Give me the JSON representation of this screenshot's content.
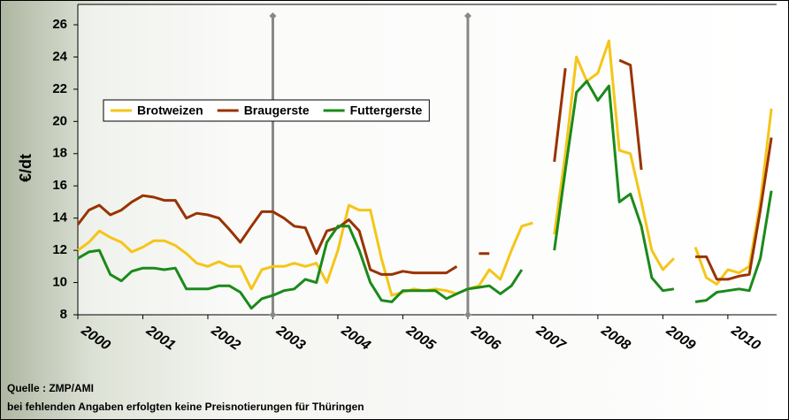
{
  "chart_data": {
    "type": "line",
    "ylabel": "€/dt",
    "notes": [
      "Quelle : ZMP/AMI",
      "bei fehlenden Angaben erfolgten keine Preisnotierungen für Thüringen"
    ],
    "xlim": [
      2000,
      2010.75
    ],
    "xticks": [
      2000,
      2001,
      2002,
      2003,
      2004,
      2005,
      2006,
      2007,
      2008,
      2009,
      2010
    ],
    "ylim": [
      8,
      26
    ],
    "yticks": [
      8,
      10,
      12,
      14,
      16,
      18,
      20,
      22,
      24,
      26
    ],
    "vlines": [
      2003,
      2006
    ],
    "x": [
      2000,
      2000.17,
      2000.33,
      2000.5,
      2000.67,
      2000.83,
      2001,
      2001.17,
      2001.33,
      2001.5,
      2001.67,
      2001.83,
      2002,
      2002.17,
      2002.33,
      2002.5,
      2002.67,
      2002.83,
      2003,
      2003.17,
      2003.33,
      2003.5,
      2003.67,
      2003.83,
      2004,
      2004.17,
      2004.33,
      2004.5,
      2004.67,
      2004.83,
      2005,
      2005.17,
      2005.33,
      2005.5,
      2005.67,
      2005.83,
      2006,
      2006.17,
      2006.33,
      2006.5,
      2006.67,
      2006.83,
      2007,
      2007.17,
      2007.33,
      2007.5,
      2007.67,
      2007.83,
      2008,
      2008.17,
      2008.33,
      2008.5,
      2008.67,
      2008.83,
      2009,
      2009.17,
      2009.33,
      2009.5,
      2009.67,
      2009.83,
      2010,
      2010.17,
      2010.33,
      2010.5,
      2010.67
    ],
    "series": [
      {
        "name": "Brotweizen",
        "color": "#f5c518",
        "values": [
          12.0,
          12.5,
          13.2,
          12.8,
          12.5,
          11.9,
          12.2,
          12.6,
          12.6,
          12.3,
          11.8,
          11.2,
          11.0,
          11.3,
          11.0,
          11.0,
          9.6,
          10.8,
          11.0,
          11.0,
          11.2,
          11.0,
          11.2,
          10.0,
          12.0,
          14.8,
          14.5,
          14.5,
          11.5,
          9.2,
          9.4,
          9.6,
          9.5,
          9.6,
          9.5,
          9.3,
          9.6,
          9.8,
          10.8,
          10.2,
          12.0,
          13.5,
          13.7,
          null,
          13.0,
          18.0,
          24.0,
          22.5,
          23.0,
          25.0,
          18.2,
          18.0,
          15.0,
          12.0,
          10.8,
          11.5,
          null,
          12.2,
          10.3,
          9.9,
          10.8,
          10.6,
          11.0,
          15.0,
          20.8
        ]
      },
      {
        "name": "Braugerste",
        "color": "#993300",
        "values": [
          13.6,
          14.5,
          14.8,
          14.2,
          14.5,
          15.0,
          15.4,
          15.3,
          15.1,
          15.1,
          14.0,
          14.3,
          14.2,
          14.0,
          13.3,
          12.5,
          13.5,
          14.4,
          14.4,
          14.0,
          13.5,
          13.4,
          11.8,
          13.2,
          13.4,
          13.9,
          13.2,
          10.8,
          10.5,
          10.5,
          10.7,
          10.6,
          10.6,
          10.6,
          10.6,
          11.0,
          null,
          11.8,
          11.8,
          null,
          null,
          null,
          null,
          null,
          17.5,
          23.3,
          null,
          null,
          null,
          null,
          23.8,
          23.5,
          17.0,
          null,
          null,
          null,
          null,
          11.6,
          11.6,
          10.2,
          10.2,
          10.4,
          10.5,
          14.5,
          19.0
        ]
      },
      {
        "name": "Futtergerste",
        "color": "#1a8a1a",
        "values": [
          11.5,
          11.9,
          12.0,
          10.5,
          10.1,
          10.7,
          10.9,
          10.9,
          10.8,
          10.9,
          9.6,
          9.6,
          9.6,
          9.8,
          9.8,
          9.4,
          8.4,
          9.0,
          9.2,
          9.5,
          9.6,
          10.2,
          10.0,
          12.5,
          13.5,
          13.5,
          12.0,
          10.0,
          8.9,
          8.8,
          9.5,
          9.5,
          9.5,
          9.5,
          9.0,
          9.3,
          9.6,
          9.7,
          9.8,
          9.3,
          9.8,
          10.8,
          null,
          null,
          12.0,
          17.0,
          21.8,
          22.5,
          21.3,
          22.2,
          15.0,
          15.5,
          13.5,
          10.3,
          9.5,
          9.6,
          null,
          8.8,
          8.9,
          9.4,
          9.5,
          9.6,
          9.5,
          11.5,
          15.7
        ]
      }
    ]
  }
}
